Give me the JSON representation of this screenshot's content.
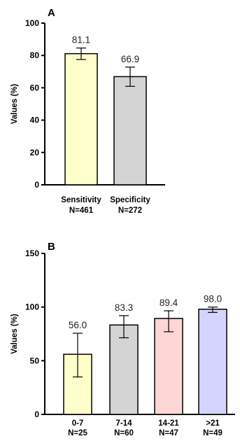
{
  "chart_data": [
    {
      "panel": "A",
      "type": "bar",
      "ylabel": "Values (%)",
      "ylim": [
        0,
        100
      ],
      "yticks": [
        0,
        20,
        40,
        60,
        80,
        100
      ],
      "categories": [
        {
          "line1": "Sensitivity",
          "line2": "N=461"
        },
        {
          "line1": "Specificity",
          "line2": "N=272"
        }
      ],
      "values": [
        81.1,
        66.9
      ],
      "value_labels": [
        "81.1",
        "66.9"
      ],
      "error_low": [
        77.5,
        60.9
      ],
      "error_high": [
        84.6,
        72.8
      ],
      "colors": [
        "#ffffcc",
        "#d4d4d4"
      ]
    },
    {
      "panel": "B",
      "type": "bar",
      "ylabel": "Values (%)",
      "ylim": [
        0,
        150
      ],
      "yticks": [
        0,
        50,
        100,
        150
      ],
      "categories": [
        {
          "line1": "0-7",
          "line2": "N=25"
        },
        {
          "line1": "7-14",
          "line2": "N=60"
        },
        {
          "line1": "14-21",
          "line2": "N=47"
        },
        {
          "line1": ">21",
          "line2": "N=49"
        }
      ],
      "values": [
        56.0,
        83.3,
        89.4,
        98.0
      ],
      "value_labels": [
        "56.0",
        "83.3",
        "89.4",
        "98.0"
      ],
      "error_low": [
        34.9,
        71.4,
        77.0,
        95.0
      ],
      "error_high": [
        75.6,
        92.0,
        96.5,
        100.0
      ],
      "colors": [
        "#ffffcc",
        "#d4d4d4",
        "#ffd6d6",
        "#d4d4ff"
      ]
    }
  ]
}
